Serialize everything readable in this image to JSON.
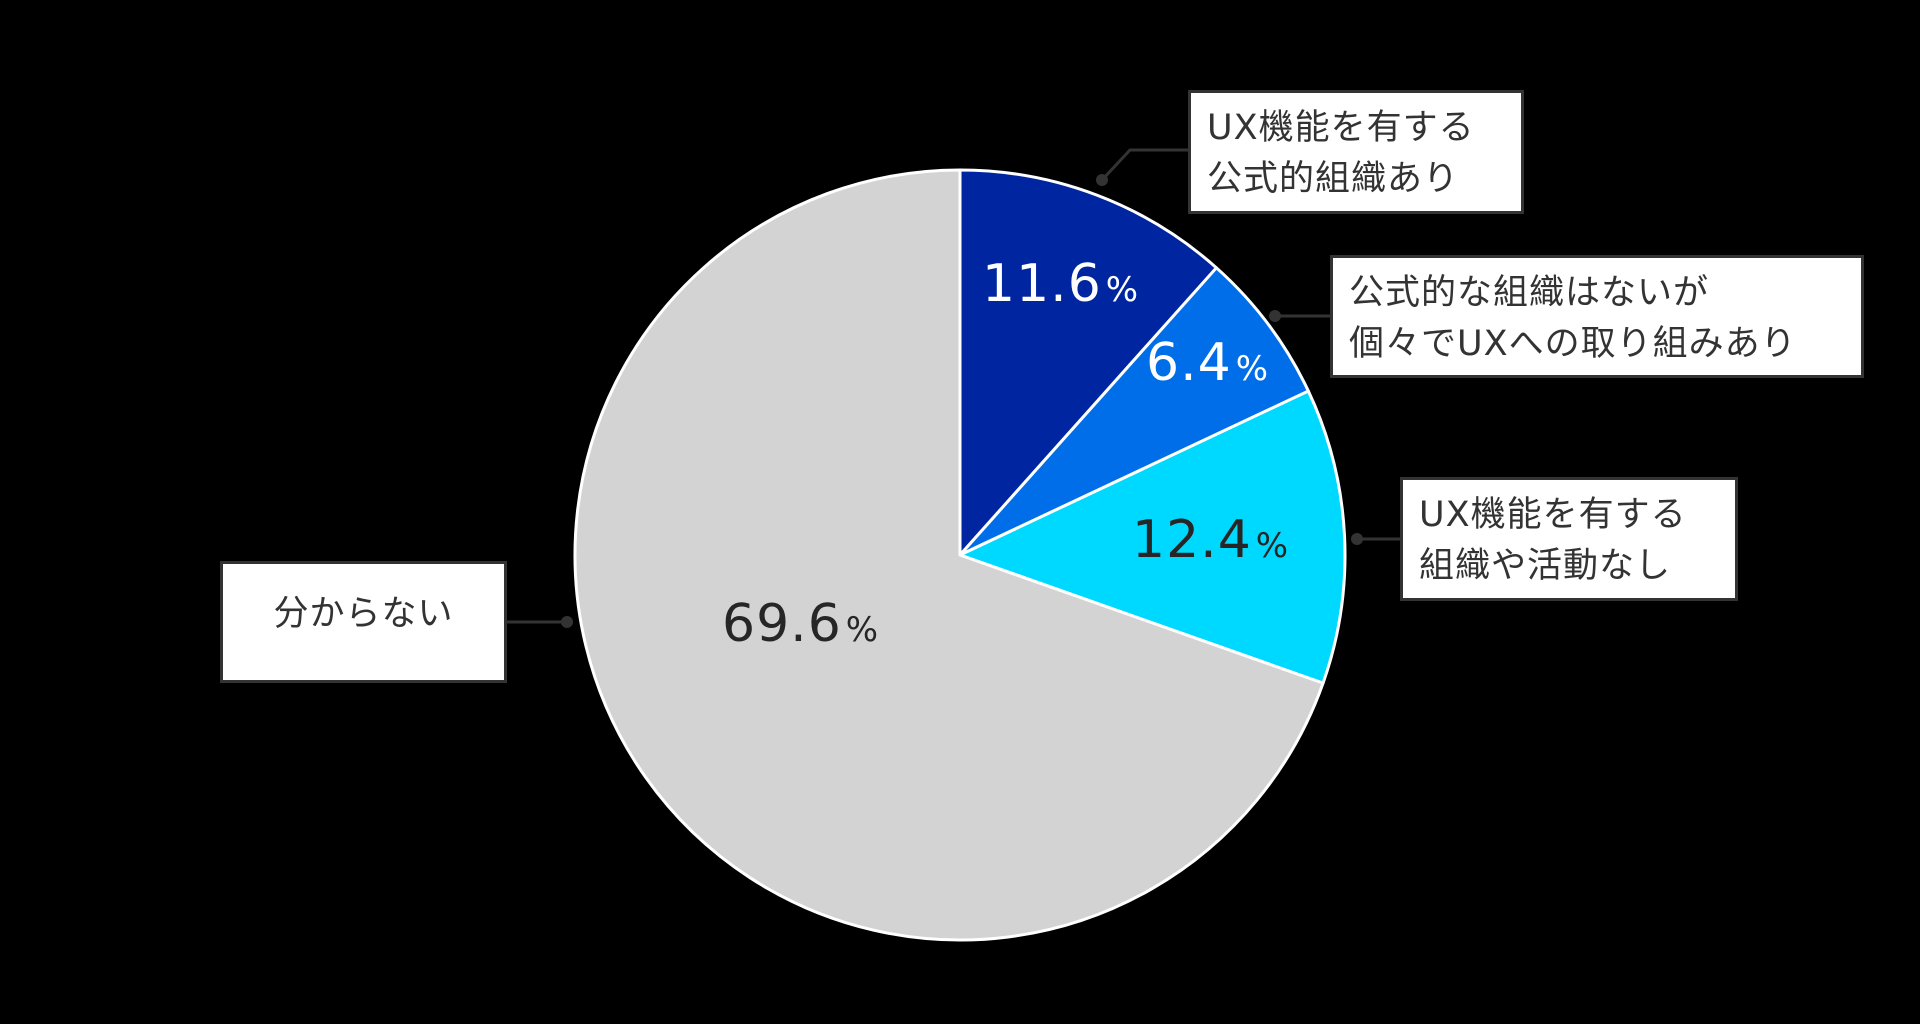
{
  "chart_data": {
    "type": "pie",
    "title": "",
    "start_angle_deg": 0,
    "direction": "clockwise",
    "slices": [
      {
        "label": "UX機能を有する公式的組織あり",
        "value": 11.6,
        "color": "#0025a0",
        "text_color": "#ffffff"
      },
      {
        "label": "公式的な組織はないが個々でUXへの取り組みあり",
        "value": 6.4,
        "color": "#006ee8",
        "text_color": "#ffffff"
      },
      {
        "label": "UX機能を有する組織や活動なし",
        "value": 12.4,
        "color": "#00d9ff",
        "text_color": "#262626"
      },
      {
        "label": "分からない",
        "value": 69.6,
        "color": "#d3d3d3",
        "text_color": "#262626"
      }
    ],
    "unit": "%"
  },
  "labels": [
    {
      "lines": [
        "UX機能を有する",
        "公式的組織あり"
      ]
    },
    {
      "lines": [
        "公式的な組織はないが",
        "個々でUXへの取り組みあり"
      ]
    },
    {
      "lines": [
        "UX機能を有する",
        "組織や活動なし"
      ]
    },
    {
      "lines": [
        "分からない"
      ]
    }
  ],
  "values": [
    {
      "number": "11.6",
      "sign": "%"
    },
    {
      "number": "6.4",
      "sign": "%"
    },
    {
      "number": "12.4",
      "sign": "%"
    },
    {
      "number": "69.6",
      "sign": "%"
    }
  ]
}
